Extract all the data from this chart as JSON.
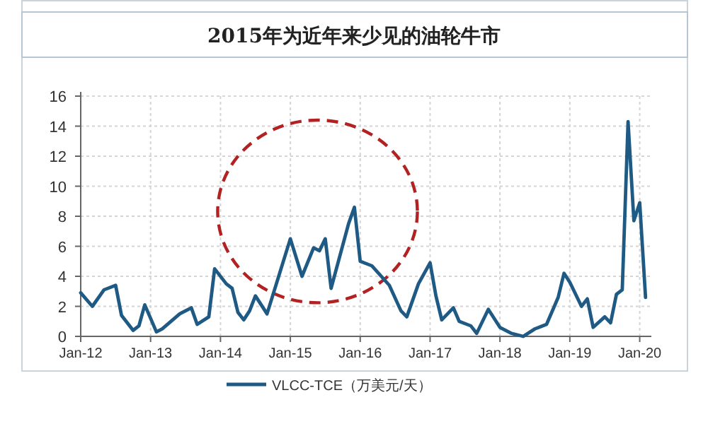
{
  "chart_data": {
    "type": "line",
    "title": "2015年为近年来少见的油轮牛市",
    "x": [
      "2012-01",
      "2012-03",
      "2012-05",
      "2012-07",
      "2012-08",
      "2012-10",
      "2012-11",
      "2012-12",
      "2013-02",
      "2013-03",
      "2013-06",
      "2013-08",
      "2013-09",
      "2013-11",
      "2013-12",
      "2014-02",
      "2014-03",
      "2014-04",
      "2014-05",
      "2014-06",
      "2014-07",
      "2014-09",
      "2014-11",
      "2015-01",
      "2015-03",
      "2015-05",
      "2015-06",
      "2015-07",
      "2015-08",
      "2015-11",
      "2015-12",
      "2016-01",
      "2016-03",
      "2016-06",
      "2016-08",
      "2016-09",
      "2016-11",
      "2017-01",
      "2017-02",
      "2017-03",
      "2017-05",
      "2017-06",
      "2017-08",
      "2017-09",
      "2017-11",
      "2018-01",
      "2018-03",
      "2018-05",
      "2018-07",
      "2018-09",
      "2018-11",
      "2018-12",
      "2019-01",
      "2019-03",
      "2019-04",
      "2019-05",
      "2019-07",
      "2019-08",
      "2019-09",
      "2019-10",
      "2019-11",
      "2019-12",
      "2020-01",
      "2020-02"
    ],
    "series": [
      {
        "name": "VLCC-TCE（万美元/天）",
        "color": "#1f5a85",
        "values": [
          2.9,
          2.0,
          3.1,
          3.4,
          1.4,
          0.4,
          0.7,
          2.1,
          0.3,
          0.5,
          1.5,
          1.9,
          0.8,
          1.3,
          4.5,
          3.5,
          3.2,
          1.6,
          1.1,
          1.7,
          2.7,
          1.5,
          4.0,
          6.5,
          4.0,
          5.9,
          5.7,
          6.5,
          3.2,
          7.5,
          8.6,
          5.0,
          4.7,
          3.4,
          1.7,
          1.3,
          3.5,
          4.9,
          2.7,
          1.1,
          1.9,
          1.0,
          0.7,
          0.2,
          1.8,
          0.6,
          0.2,
          0.0,
          0.5,
          0.8,
          2.6,
          4.2,
          3.6,
          2.0,
          2.5,
          0.6,
          1.3,
          0.9,
          2.8,
          3.1,
          14.3,
          7.7,
          8.9,
          2.6
        ]
      }
    ],
    "xlim": [
      "2012-01",
      "2020-03"
    ],
    "xticks": [
      {
        "value": "2012-01",
        "label": "Jan-12"
      },
      {
        "value": "2013-01",
        "label": "Jan-13"
      },
      {
        "value": "2014-01",
        "label": "Jan-14"
      },
      {
        "value": "2015-01",
        "label": "Jan-15"
      },
      {
        "value": "2016-01",
        "label": "Jan-16"
      },
      {
        "value": "2017-01",
        "label": "Jan-17"
      },
      {
        "value": "2018-01",
        "label": "Jan-18"
      },
      {
        "value": "2019-01",
        "label": "Jan-19"
      },
      {
        "value": "2020-01",
        "label": "Jan-20"
      }
    ],
    "ylim": [
      0,
      16
    ],
    "yticks": [
      0,
      2,
      4,
      6,
      8,
      10,
      12,
      14,
      16
    ],
    "grid": true,
    "legend": "bottom",
    "marker": "none",
    "line_style": "solid"
  }
}
